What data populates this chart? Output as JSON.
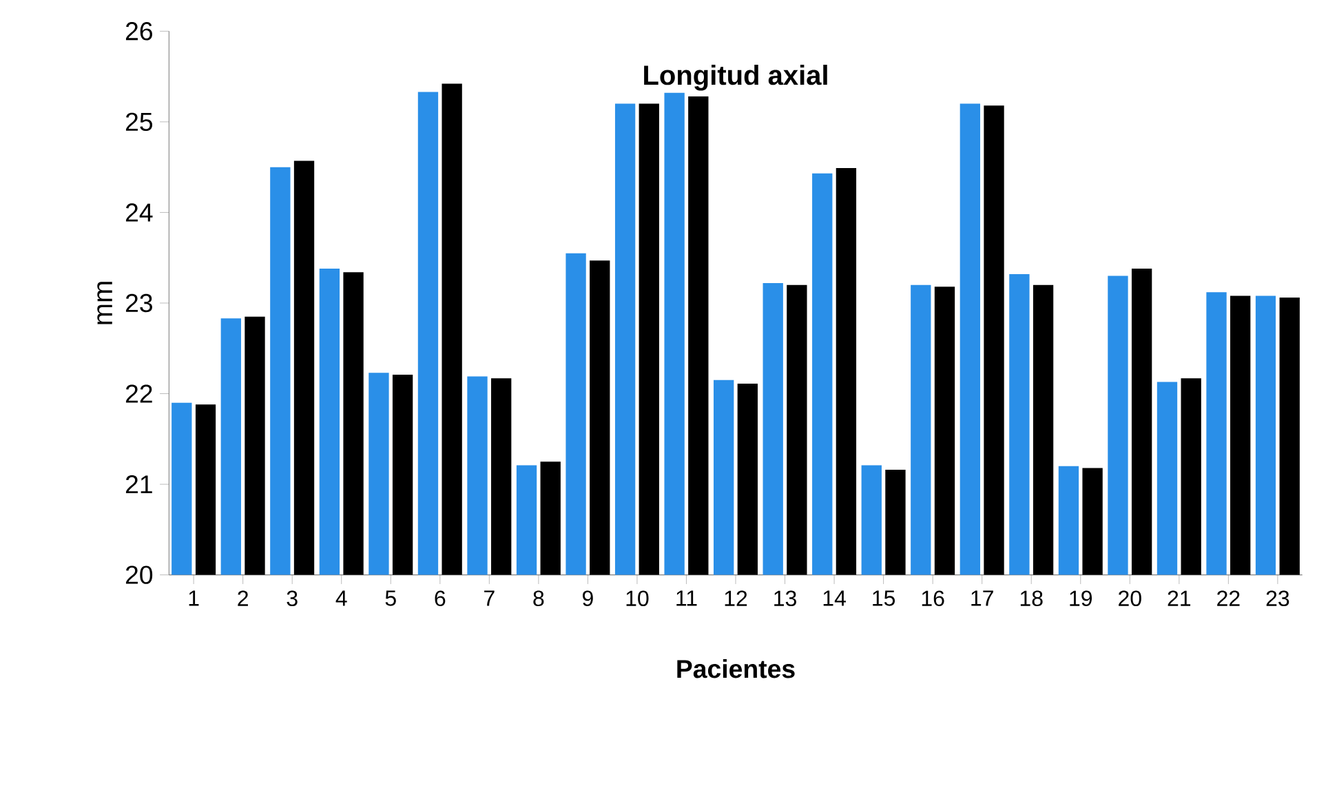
{
  "chart_data": {
    "type": "bar",
    "title": "Longitud axial",
    "xlabel": "Pacientes",
    "ylabel": "mm",
    "categories": [
      "1",
      "2",
      "3",
      "4",
      "5",
      "6",
      "7",
      "8",
      "9",
      "10",
      "11",
      "12",
      "13",
      "14",
      "15",
      "16",
      "17",
      "18",
      "19",
      "20",
      "21",
      "22",
      "23"
    ],
    "series": [
      {
        "color": "#2a8fe8",
        "values": [
          21.9,
          22.83,
          24.5,
          23.38,
          22.23,
          25.33,
          22.19,
          21.21,
          23.55,
          25.2,
          25.32,
          22.15,
          23.22,
          24.43,
          21.21,
          23.2,
          25.2,
          23.32,
          21.2,
          23.3,
          22.13,
          23.12,
          23.08
        ]
      },
      {
        "color": "#000000",
        "values": [
          21.88,
          22.85,
          24.57,
          23.34,
          22.21,
          25.42,
          22.17,
          21.25,
          23.47,
          25.2,
          25.28,
          22.11,
          23.2,
          24.49,
          21.16,
          23.18,
          25.18,
          23.2,
          21.18,
          23.38,
          22.17,
          23.08,
          23.06
        ]
      }
    ],
    "ylim": [
      20,
      26
    ],
    "yticks": [
      20,
      21,
      22,
      23,
      24,
      25,
      26
    ]
  }
}
